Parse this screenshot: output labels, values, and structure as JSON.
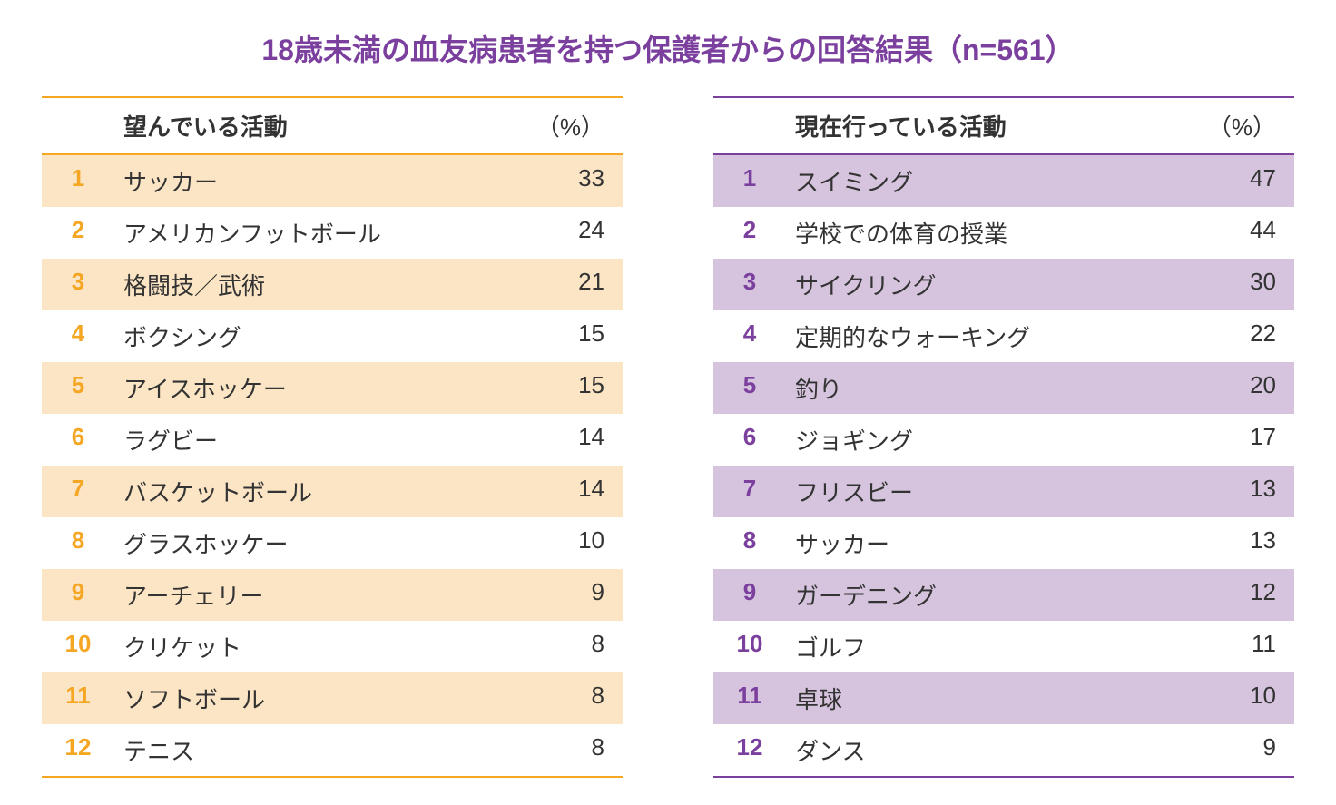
{
  "title": "18歳未満の血友病患者を持つ保護者からの回答結果（n=561）",
  "title_color": "#7b3f9e",
  "left_table": {
    "header_activity": "望んでいる活動",
    "header_percent": "（%）",
    "border_color": "#f5a623",
    "rank_color": "#f5a623",
    "odd_row_bg": "#fce5c5",
    "even_row_bg": "#ffffff",
    "text_color": "#333333",
    "rows": [
      {
        "rank": "1",
        "activity": "サッカー",
        "percent": "33"
      },
      {
        "rank": "2",
        "activity": "アメリカンフットボール",
        "percent": "24"
      },
      {
        "rank": "3",
        "activity": "格闘技／武術",
        "percent": "21"
      },
      {
        "rank": "4",
        "activity": "ボクシング",
        "percent": "15"
      },
      {
        "rank": "5",
        "activity": "アイスホッケー",
        "percent": "15"
      },
      {
        "rank": "6",
        "activity": "ラグビー",
        "percent": "14"
      },
      {
        "rank": "7",
        "activity": "バスケットボール",
        "percent": "14"
      },
      {
        "rank": "8",
        "activity": "グラスホッケー",
        "percent": "10"
      },
      {
        "rank": "9",
        "activity": "アーチェリー",
        "percent": "9"
      },
      {
        "rank": "10",
        "activity": "クリケット",
        "percent": "8"
      },
      {
        "rank": "11",
        "activity": "ソフトボール",
        "percent": "8"
      },
      {
        "rank": "12",
        "activity": "テニス",
        "percent": "8"
      }
    ]
  },
  "right_table": {
    "header_activity": "現在行っている活動",
    "header_percent": "（%）",
    "border_color": "#7b3f9e",
    "rank_color": "#7b3f9e",
    "odd_row_bg": "#d6c4de",
    "even_row_bg": "#ffffff",
    "text_color": "#333333",
    "rows": [
      {
        "rank": "1",
        "activity": "スイミング",
        "percent": "47"
      },
      {
        "rank": "2",
        "activity": "学校での体育の授業",
        "percent": "44"
      },
      {
        "rank": "3",
        "activity": "サイクリング",
        "percent": "30"
      },
      {
        "rank": "4",
        "activity": "定期的なウォーキング",
        "percent": "22"
      },
      {
        "rank": "5",
        "activity": "釣り",
        "percent": "20"
      },
      {
        "rank": "6",
        "activity": "ジョギング",
        "percent": "17"
      },
      {
        "rank": "7",
        "activity": "フリスビー",
        "percent": "13"
      },
      {
        "rank": "8",
        "activity": "サッカー",
        "percent": "13"
      },
      {
        "rank": "9",
        "activity": "ガーデニング",
        "percent": "12"
      },
      {
        "rank": "10",
        "activity": "ゴルフ",
        "percent": "11"
      },
      {
        "rank": "11",
        "activity": "卓球",
        "percent": "10"
      },
      {
        "rank": "12",
        "activity": "ダンス",
        "percent": "9"
      }
    ]
  }
}
